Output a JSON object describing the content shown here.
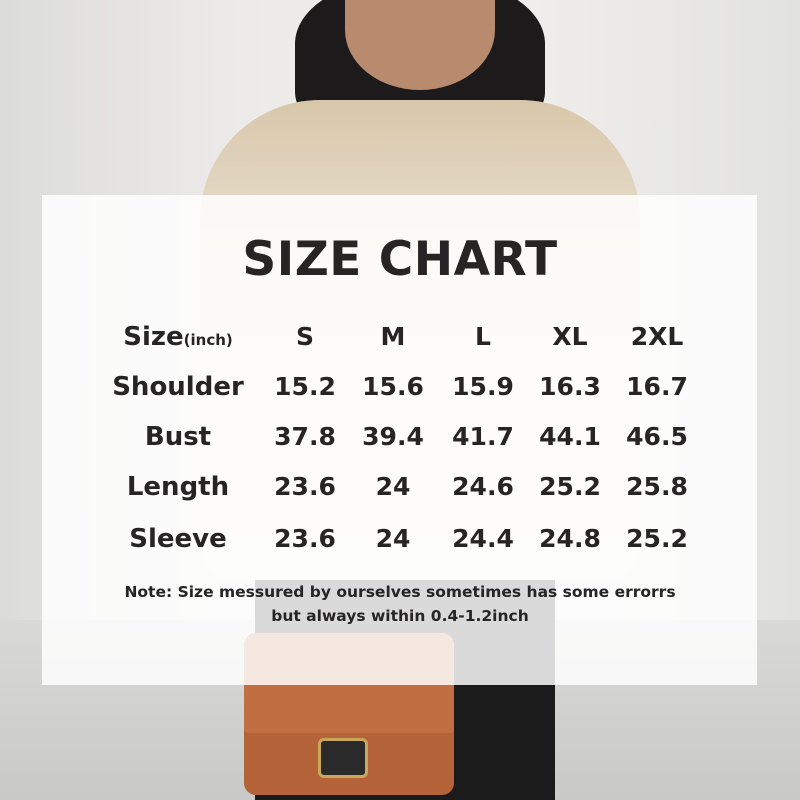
{
  "title": "SIZE CHART",
  "table": {
    "header_label": "Size",
    "header_unit": "(inch)",
    "sizes": [
      "S",
      "M",
      "L",
      "XL",
      "2XL"
    ],
    "rows": [
      {
        "label": "Shoulder",
        "values": [
          "15.2",
          "15.6",
          "15.9",
          "16.3",
          "16.7"
        ]
      },
      {
        "label": "Bust",
        "values": [
          "37.8",
          "39.4",
          "41.7",
          "44.1",
          "46.5"
        ]
      },
      {
        "label": "Length",
        "values": [
          "23.6",
          "24",
          "24.6",
          "25.2",
          "25.8"
        ]
      },
      {
        "label": "Sleeve",
        "values": [
          "23.6",
          "24",
          "24.4",
          "24.8",
          "25.2"
        ]
      }
    ]
  },
  "note": {
    "line1": "Note:  Size messured by ourselves sometimes has some errorrs",
    "line2": "but always within 0.4-1.2inch"
  },
  "colors": {
    "text": "#262424",
    "bag": "#b5643a",
    "blouse": "#eee6da"
  }
}
